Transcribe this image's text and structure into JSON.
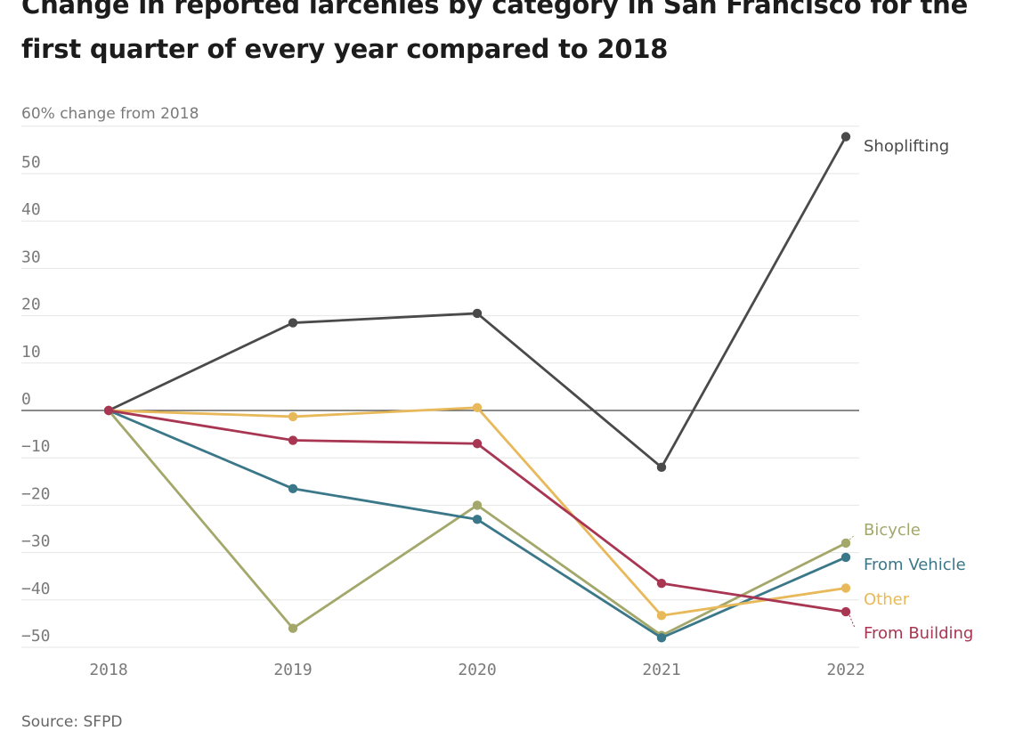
{
  "title": "Change in reported larcenies by category in San Francisco for the first quarter of every year compared to 2018",
  "source": "Source: SFPD",
  "colors": {
    "grid": "#e6e6e6",
    "zero_line": "#444444",
    "tick_text": "#7a7a7a"
  },
  "chart_data": {
    "type": "line",
    "title": "Change in reported larcenies by category in San Francisco for the first quarter of every year compared to 2018",
    "ylabel": "% change from 2018",
    "y_unit_label": "60% change from 2018",
    "x": [
      "2018",
      "2019",
      "2020",
      "2021",
      "2022"
    ],
    "ylim": [
      -50,
      60
    ],
    "y_ticks": [
      60,
      50,
      40,
      30,
      20,
      10,
      0,
      -10,
      -20,
      -30,
      -40,
      -50
    ],
    "grid": true,
    "series": [
      {
        "name": "Shoplifting",
        "color": "#4a4a4a",
        "values": [
          0,
          18.5,
          20.5,
          -12,
          57.8
        ]
      },
      {
        "name": "Bicycle",
        "color": "#a3a86a",
        "values": [
          0,
          -46,
          -20,
          -47.5,
          -28
        ]
      },
      {
        "name": "From Vehicle",
        "color": "#3a7889",
        "values": [
          0,
          -16.5,
          -23,
          -48,
          -31
        ]
      },
      {
        "name": "Other",
        "color": "#e8b95a",
        "values": [
          0,
          -1.3,
          0.6,
          -43.3,
          -37.5
        ]
      },
      {
        "name": "From Building",
        "color": "#a83652",
        "values": [
          0,
          -6.3,
          -7,
          -36.5,
          -42.5
        ]
      }
    ]
  }
}
